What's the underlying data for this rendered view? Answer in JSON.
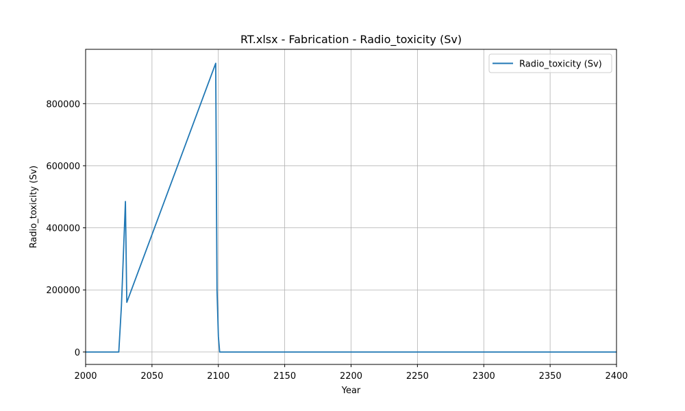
{
  "chart_data": {
    "type": "line",
    "title": "RT.xlsx - Fabrication - Radio_toxicity (Sv)",
    "xlabel": "Year",
    "ylabel": "Radio_toxicity (Sv)",
    "xlim": [
      2000,
      2400
    ],
    "ylim": [
      -40000,
      975000
    ],
    "xticks": [
      2000,
      2050,
      2100,
      2150,
      2200,
      2250,
      2300,
      2350,
      2400
    ],
    "yticks": [
      0,
      200000,
      400000,
      600000,
      800000
    ],
    "grid": true,
    "legend_position": "top-right",
    "series": [
      {
        "name": "Radio_toxicity (Sv)",
        "color": "#1f77b4",
        "x": [
          2000,
          2025,
          2027,
          2030,
          2031,
          2098,
          2099,
          2100,
          2101,
          2400
        ],
        "y": [
          0,
          0,
          150000,
          485000,
          160000,
          930000,
          200000,
          50000,
          0,
          0
        ]
      }
    ]
  }
}
